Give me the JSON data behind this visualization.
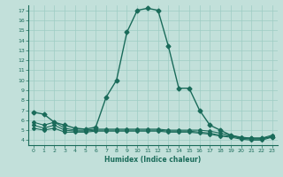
{
  "xlabel": "Humidex (Indice chaleur)",
  "ylabel": "",
  "xlim": [
    -0.5,
    23.5
  ],
  "ylim": [
    3.5,
    17.5
  ],
  "xticks": [
    0,
    1,
    2,
    3,
    4,
    5,
    6,
    7,
    8,
    9,
    10,
    11,
    12,
    13,
    14,
    15,
    16,
    17,
    18,
    19,
    20,
    21,
    22,
    23
  ],
  "yticks": [
    4,
    5,
    6,
    7,
    8,
    9,
    10,
    11,
    12,
    13,
    14,
    15,
    16,
    17
  ],
  "background_color": "#c2e0da",
  "line_color": "#1a6b5a",
  "grid_color": "#9eccc4",
  "series": [
    {
      "x": [
        0,
        1,
        2,
        3,
        4,
        5,
        6,
        7,
        8,
        9,
        10,
        11,
        12,
        13,
        14,
        15,
        16,
        17,
        18,
        19,
        20,
        21,
        22,
        23
      ],
      "y": [
        6.8,
        6.6,
        5.8,
        5.5,
        5.2,
        5.1,
        5.3,
        8.3,
        10.0,
        14.8,
        17.0,
        17.2,
        17.0,
        13.4,
        9.2,
        9.2,
        7.0,
        5.5,
        5.0,
        4.5,
        4.2,
        4.2,
        4.2,
        4.3
      ],
      "marker": "D",
      "markersize": 2.5,
      "linewidth": 1.0
    },
    {
      "x": [
        0,
        1,
        2,
        3,
        4,
        5,
        6,
        7,
        8,
        9,
        10,
        11,
        12,
        13,
        14,
        15,
        16,
        17,
        18,
        19,
        20,
        21,
        22,
        23
      ],
      "y": [
        5.8,
        5.5,
        5.8,
        5.2,
        5.0,
        5.0,
        5.1,
        5.1,
        5.1,
        5.1,
        5.1,
        5.1,
        5.1,
        5.0,
        5.0,
        5.0,
        5.0,
        4.9,
        4.7,
        4.5,
        4.3,
        4.2,
        4.2,
        4.5
      ],
      "marker": "D",
      "markersize": 2.0,
      "linewidth": 0.8
    },
    {
      "x": [
        0,
        1,
        2,
        3,
        4,
        5,
        6,
        7,
        8,
        9,
        10,
        11,
        12,
        13,
        14,
        15,
        16,
        17,
        18,
        19,
        20,
        21,
        22,
        23
      ],
      "y": [
        5.5,
        5.2,
        5.5,
        5.0,
        4.9,
        4.9,
        5.0,
        5.0,
        5.0,
        5.0,
        5.0,
        5.0,
        5.0,
        4.9,
        4.9,
        4.9,
        4.8,
        4.7,
        4.5,
        4.4,
        4.2,
        4.1,
        4.1,
        4.4
      ],
      "marker": "D",
      "markersize": 2.0,
      "linewidth": 0.8
    },
    {
      "x": [
        0,
        1,
        2,
        3,
        4,
        5,
        6,
        7,
        8,
        9,
        10,
        11,
        12,
        13,
        14,
        15,
        16,
        17,
        18,
        19,
        20,
        21,
        22,
        23
      ],
      "y": [
        5.2,
        5.0,
        5.2,
        4.8,
        4.8,
        4.8,
        4.9,
        4.9,
        4.9,
        4.9,
        4.9,
        4.9,
        4.9,
        4.8,
        4.8,
        4.8,
        4.7,
        4.6,
        4.4,
        4.3,
        4.1,
        4.0,
        4.0,
        4.3
      ],
      "marker": "D",
      "markersize": 2.0,
      "linewidth": 0.8
    }
  ]
}
